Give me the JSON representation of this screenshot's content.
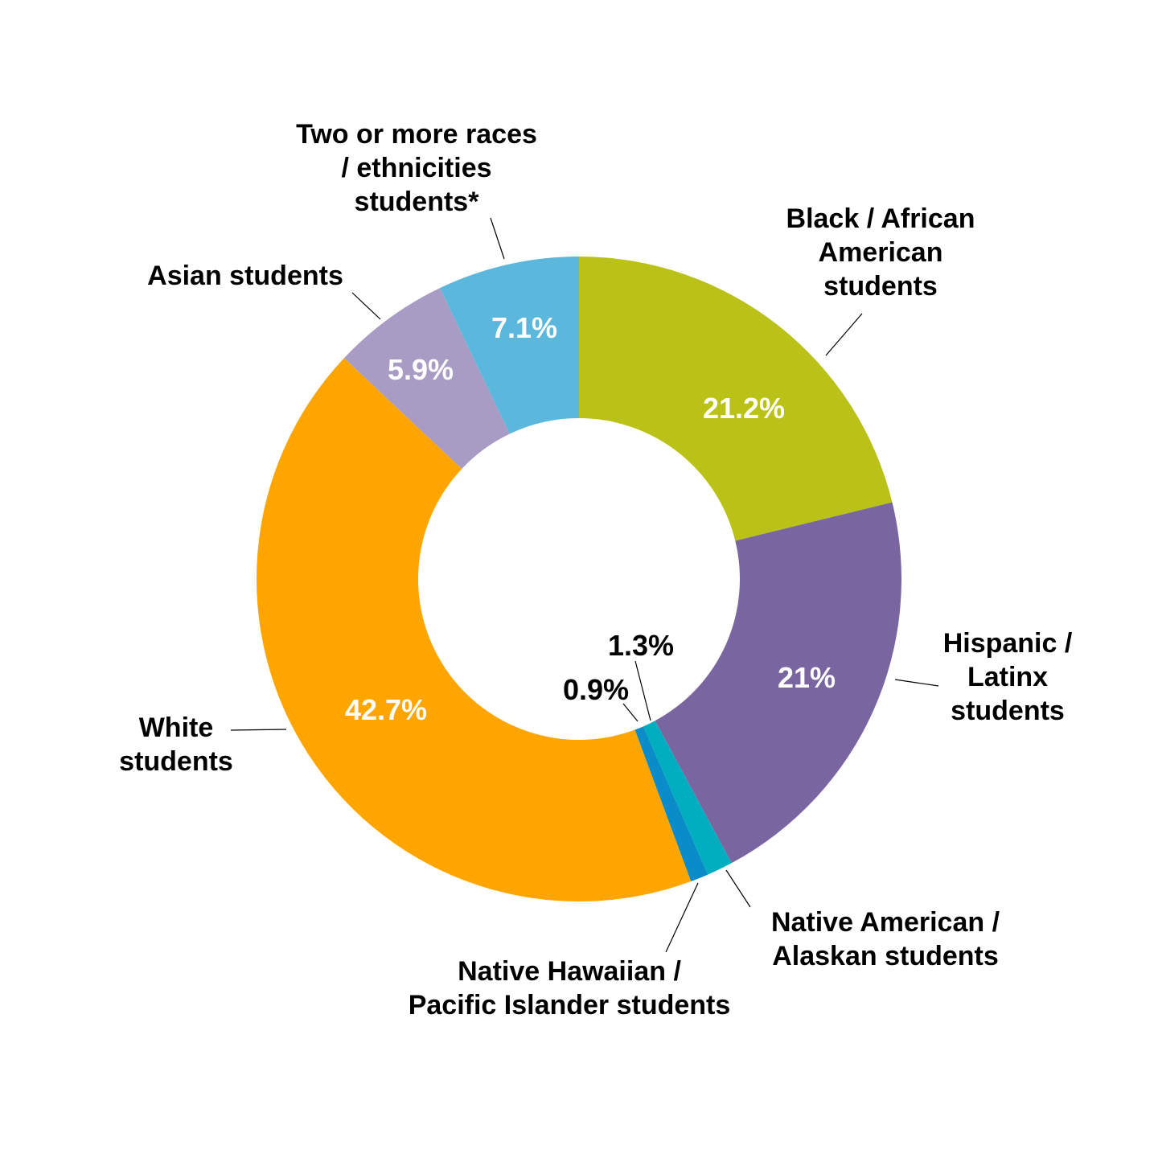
{
  "chart_data": {
    "type": "pie",
    "donut": true,
    "unit": "%",
    "slices": [
      {
        "label_lines": [
          "Black / African",
          "American",
          "students"
        ],
        "value": 21.2,
        "value_label": "21.2%",
        "color": "#BAC218"
      },
      {
        "label_lines": [
          "Hispanic /",
          "Latinx",
          "students"
        ],
        "value": 21.0,
        "value_label": "21%",
        "color": "#7966A0"
      },
      {
        "label_lines": [
          "Native American /",
          "Alaskan students"
        ],
        "value": 1.3,
        "value_label": "1.3%",
        "color": "#00AEC0"
      },
      {
        "label_lines": [
          "Native Hawaiian /",
          "Pacific Islander students"
        ],
        "value": 0.9,
        "value_label": "0.9%",
        "color": "#0A8CC8"
      },
      {
        "label_lines": [
          "White",
          "students"
        ],
        "value": 42.7,
        "value_label": "42.7%",
        "color": "#FFA500"
      },
      {
        "label_lines": [
          "Asian students"
        ],
        "value": 5.9,
        "value_label": "5.9%",
        "color": "#A89CC4"
      },
      {
        "label_lines": [
          "Two or more races",
          "/ ethnicities",
          "students*"
        ],
        "value": 7.1,
        "value_label": "7.1%",
        "color": "#5BB8DC"
      }
    ]
  }
}
